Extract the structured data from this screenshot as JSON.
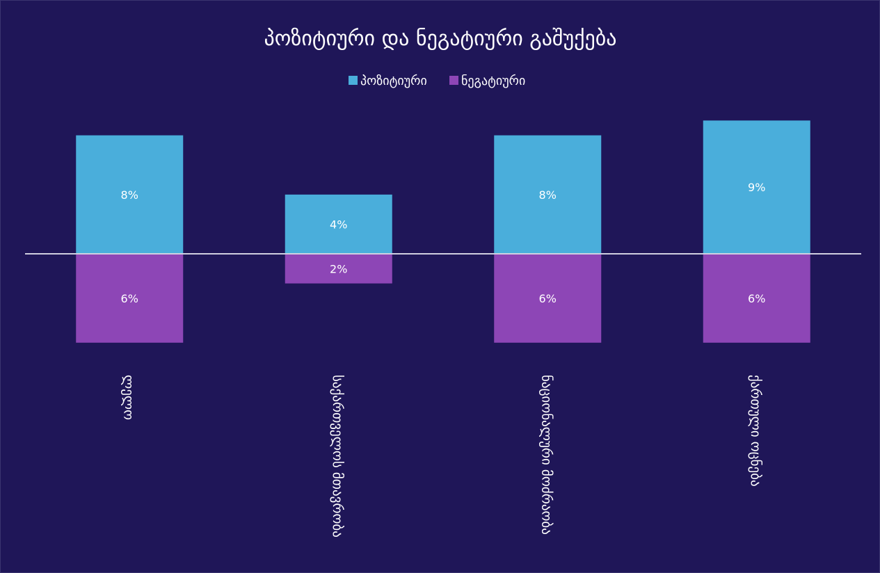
{
  "chart_data": {
    "type": "bar",
    "title": "პოზიტიური და ნეგატიური გაშუქება",
    "categories": [
      "ლელო",
      "საქართველოს მთავრობა",
      "ნაციონალური მოძრაობა",
      "ქართული ოცნება"
    ],
    "series": [
      {
        "name": "პოზიტიური",
        "values": [
          8,
          4,
          8,
          9
        ],
        "labels": [
          "8%",
          "4%",
          "8%",
          "9%"
        ],
        "color": "#4aaedb"
      },
      {
        "name": "ნეგატიური",
        "values": [
          6,
          2,
          6,
          6
        ],
        "labels": [
          "6%",
          "2%",
          "6%",
          "6%"
        ],
        "color": "#8d46b6"
      }
    ],
    "ylim": [
      -6.5,
      9
    ],
    "grid": false,
    "legend": "top-center",
    "background": "#1f1658",
    "text_color": "#ffffff",
    "baseline_color": "#d0cfe0"
  }
}
